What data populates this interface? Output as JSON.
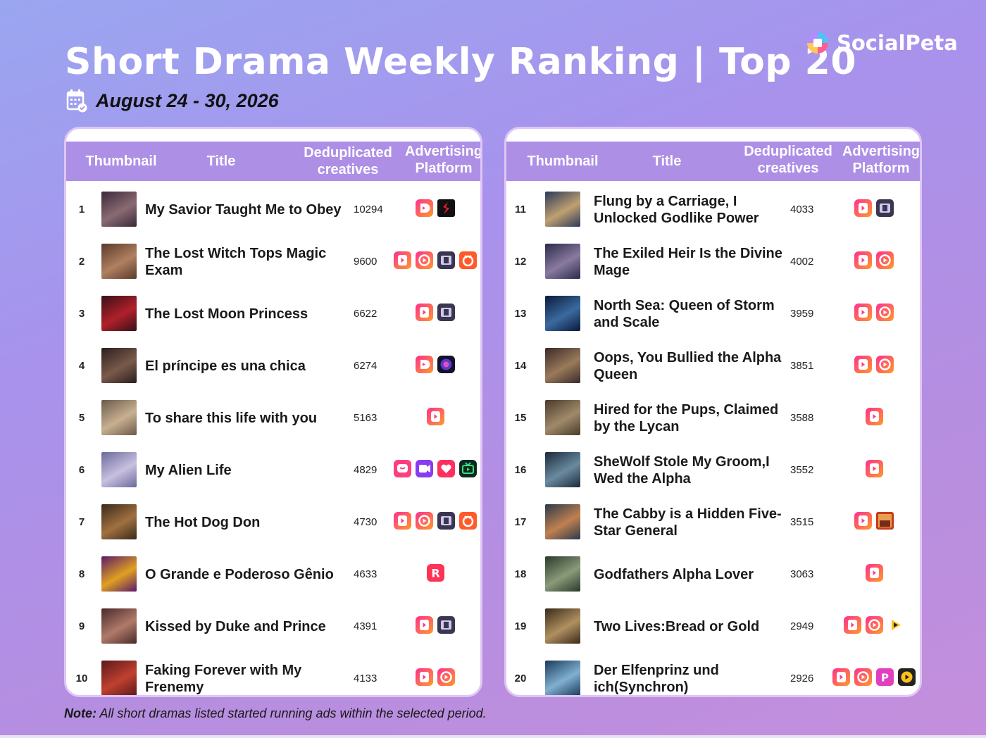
{
  "header": {
    "title": "Short Drama Weekly Ranking | Top 20",
    "date": "August 24 - 30, 2026",
    "brand": "SocialPeta"
  },
  "columns": {
    "thumbnail": "Thumbnail",
    "title": "Title",
    "creatives_l1": "Deduplicated",
    "creatives_l2": "creatives",
    "platform_l1": "Advertising",
    "platform_l2": "Platform"
  },
  "note": {
    "label": "Note:",
    "text": "All short dramas listed started running ads within the selected period."
  },
  "colors": {
    "header_bg": "#ad8fe6",
    "accent_pink": "#ff2f6d",
    "accent_orange": "#ff8a2a"
  },
  "rankings": [
    {
      "rank": "1",
      "title": "My Savior Taught Me to Obey",
      "creatives": "10294",
      "platforms": [
        "reelshort-icon",
        "shorts-red-icon"
      ],
      "thumb": [
        "#3a2a3a",
        "#8a6a72"
      ]
    },
    {
      "rank": "2",
      "title": "The Lost Witch Tops Magic Exam",
      "creatives": "9600",
      "platforms": [
        "play-icon",
        "ring-icon",
        "film-icon",
        "orange-icon"
      ],
      "thumb": [
        "#5a3a2a",
        "#b08060"
      ]
    },
    {
      "rank": "3",
      "title": "The Lost Moon Princess",
      "creatives": "6622",
      "platforms": [
        "play-icon",
        "film-icon"
      ],
      "thumb": [
        "#3a1018",
        "#b0202a"
      ]
    },
    {
      "rank": "4",
      "title": "El príncipe es una chica",
      "creatives": "6274",
      "platforms": [
        "reelshort-icon",
        "galaxy-icon"
      ],
      "thumb": [
        "#2a1e1e",
        "#7a5a4a"
      ]
    },
    {
      "rank": "5",
      "title": "To share this life with you",
      "creatives": "5163",
      "platforms": [
        "play-icon"
      ],
      "thumb": [
        "#6a5a4a",
        "#c8b090"
      ]
    },
    {
      "rank": "6",
      "title": "My Alien Life",
      "creatives": "4829",
      "platforms": [
        "chat-icon",
        "video-icon",
        "heart-icon",
        "tv-icon"
      ],
      "thumb": [
        "#6a6a9a",
        "#c8c0e0"
      ]
    },
    {
      "rank": "7",
      "title": "The Hot Dog Don",
      "creatives": "4730",
      "platforms": [
        "play-icon",
        "ring-icon",
        "film-icon",
        "orange-icon"
      ],
      "thumb": [
        "#3a2a1a",
        "#a07040"
      ]
    },
    {
      "rank": "8",
      "title": "O Grande e Poderoso Gênio",
      "creatives": "4633",
      "platforms": [
        "r-icon"
      ],
      "thumb": [
        "#5a1a6a",
        "#e0a020"
      ]
    },
    {
      "rank": "9",
      "title": "Kissed by Duke and Prince",
      "creatives": "4391",
      "platforms": [
        "play-icon",
        "film-icon"
      ],
      "thumb": [
        "#4a2a2a",
        "#b07a6a"
      ]
    },
    {
      "rank": "10",
      "title": "Faking Forever with My Frenemy",
      "creatives": "4133",
      "platforms": [
        "play-icon",
        "ring-icon"
      ],
      "thumb": [
        "#5a1a1a",
        "#c04030"
      ]
    },
    {
      "rank": "11",
      "title": "Flung by a Carriage, I Unlocked Godlike Power",
      "creatives": "4033",
      "platforms": [
        "play-icon",
        "film-icon"
      ],
      "thumb": [
        "#2a3a5a",
        "#c0a070"
      ]
    },
    {
      "rank": "12",
      "title": "The Exiled Heir Is the Divine Mage",
      "creatives": "4002",
      "platforms": [
        "play-icon",
        "ring-icon"
      ],
      "thumb": [
        "#2a2a4a",
        "#8a7aa0"
      ]
    },
    {
      "rank": "13",
      "title": "North Sea: Queen of Storm and Scale",
      "creatives": "3959",
      "platforms": [
        "play-icon",
        "ring-icon"
      ],
      "thumb": [
        "#0a1a3a",
        "#3a6aa0"
      ]
    },
    {
      "rank": "14",
      "title": "Oops, You Bullied the Alpha Queen",
      "creatives": "3851",
      "platforms": [
        "play-icon",
        "ring-icon"
      ],
      "thumb": [
        "#3a2a2a",
        "#9a7a5a"
      ]
    },
    {
      "rank": "15",
      "title": "Hired for the Pups, Claimed by the Lycan",
      "creatives": "3588",
      "platforms": [
        "play-icon"
      ],
      "thumb": [
        "#4a3a2a",
        "#a08a6a"
      ]
    },
    {
      "rank": "16",
      "title": "SheWolf Stole My Groom,I Wed the Alpha",
      "creatives": "3552",
      "platforms": [
        "play-icon"
      ],
      "thumb": [
        "#1a2a3a",
        "#6a8aa0"
      ]
    },
    {
      "rank": "17",
      "title": "The Cabby is a Hidden Five-Star General",
      "creatives": "3515",
      "platforms": [
        "play-icon",
        "poster-icon"
      ],
      "thumb": [
        "#2a3a4a",
        "#c08050"
      ]
    },
    {
      "rank": "18",
      "title": "Godfathers Alpha Lover",
      "creatives": "3063",
      "platforms": [
        "play-icon"
      ],
      "thumb": [
        "#2a3a2a",
        "#8a9a7a"
      ]
    },
    {
      "rank": "19",
      "title": "Two Lives:Bread or Gold",
      "creatives": "2949",
      "platforms": [
        "play-icon",
        "ring-icon",
        "bolt-icon"
      ],
      "thumb": [
        "#3a2a1a",
        "#b09060"
      ]
    },
    {
      "rank": "20",
      "title": "Der Elfenprinz und ich(Synchron)",
      "creatives": "2926",
      "platforms": [
        "play-icon",
        "ring-icon",
        "p-icon",
        "yt-icon"
      ],
      "thumb": [
        "#1a3a5a",
        "#80b0d0"
      ]
    }
  ]
}
